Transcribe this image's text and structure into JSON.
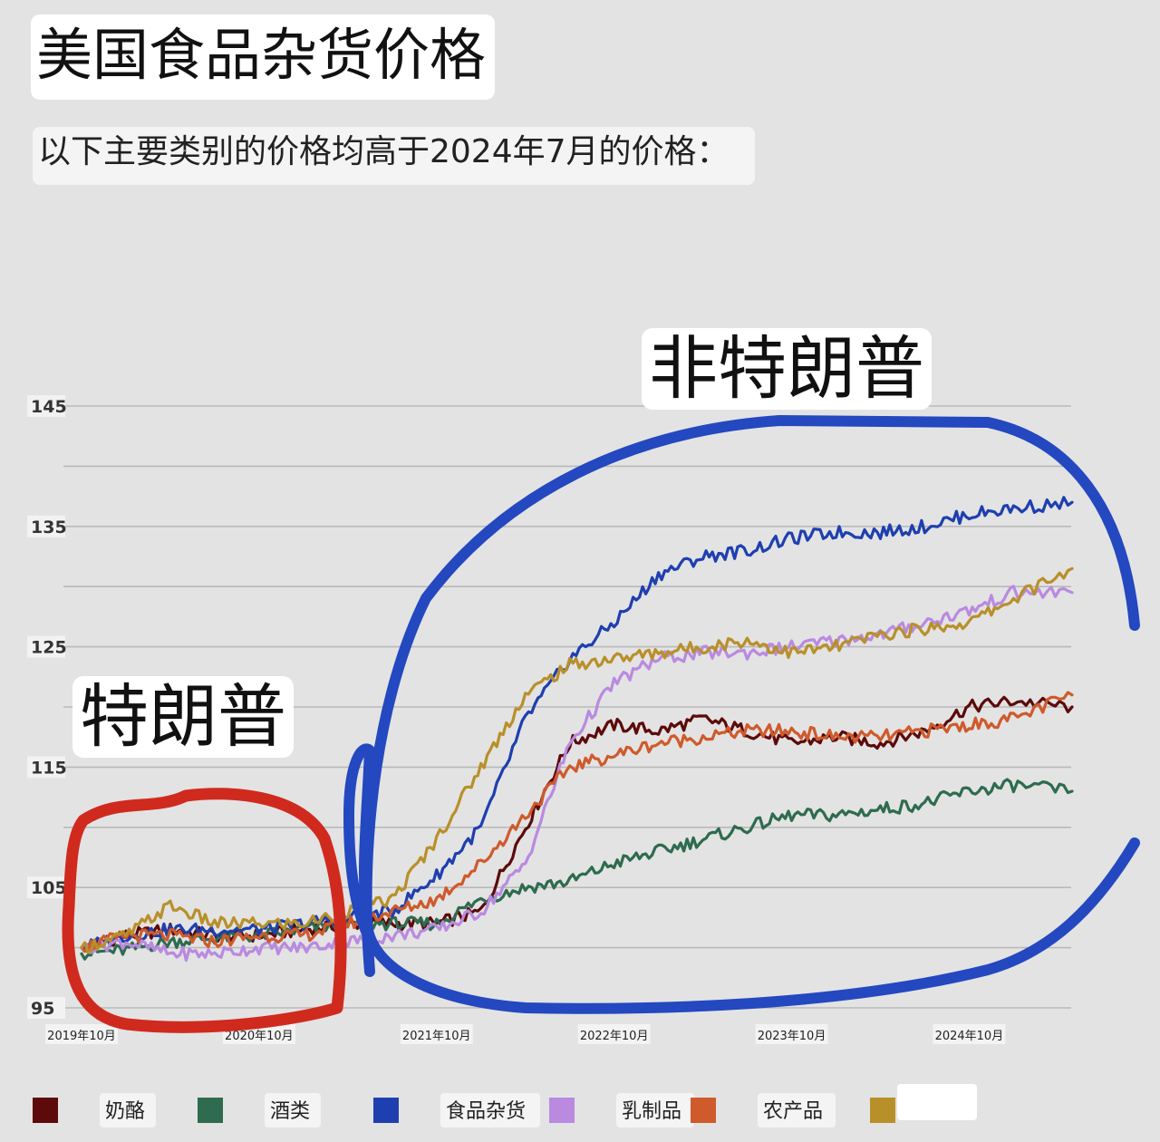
{
  "title": "美国食品杂货价格",
  "subtitle": "以下主要类别的价格均高于2024年7月的价格：",
  "annotations": {
    "trump": "特朗普",
    "non_trump": "非特朗普"
  },
  "colors": {
    "cheese": "#5c0a0a",
    "alcohol": "#2e6b4f",
    "groceries": "#1e3fb0",
    "dairy": "#b98ae0",
    "produce": "#cf5a2b",
    "meat": "#b8902a",
    "trump_circle": "#d02a1e",
    "nontrump_circle": "#2348c0"
  },
  "chart_data": {
    "type": "line",
    "ylim": [
      95,
      145
    ],
    "yticks": [
      "145",
      "135",
      "125",
      "115",
      "105",
      "95"
    ],
    "xticks": [
      "2019年10月",
      "2020年10月",
      "2021年10月",
      "2022年10月",
      "2023年10月",
      "2024年10月"
    ],
    "grid": true,
    "legend_position": "bottom",
    "x": [
      2019.75,
      2020.0,
      2020.25,
      2020.5,
      2020.75,
      2021.0,
      2021.25,
      2021.5,
      2021.75,
      2022.0,
      2022.25,
      2022.5,
      2022.75,
      2023.0,
      2023.25,
      2023.5,
      2023.75,
      2024.0,
      2024.25,
      2024.5,
      2024.75,
      2025.0,
      2025.33
    ],
    "series": [
      {
        "name": "奶酪",
        "color_key": "cheese",
        "values": [
          100,
          101,
          101.5,
          101,
          101,
          101.5,
          102,
          102,
          102,
          103,
          110,
          117,
          118.5,
          118,
          119,
          118,
          117,
          117.5,
          117,
          118,
          120,
          120.5,
          120
        ]
      },
      {
        "name": "酒类",
        "color_key": "alcohol",
        "values": [
          99.5,
          99.8,
          100.5,
          100.8,
          101,
          101.5,
          102,
          102,
          102,
          104,
          105,
          105.5,
          107,
          108,
          109,
          110,
          111,
          111,
          111.5,
          112,
          113,
          113.5,
          113
        ]
      },
      {
        "name": "食品杂货",
        "color_key": "groceries",
        "values": [
          100,
          101,
          101.5,
          101.5,
          101.5,
          102,
          102.5,
          103,
          106,
          110,
          119,
          124,
          127,
          131,
          132.5,
          133,
          134,
          134.5,
          134.5,
          135,
          136,
          136.5,
          137
        ]
      },
      {
        "name": "乳制品",
        "color_key": "dairy",
        "values": [
          100,
          100.5,
          99.5,
          99.5,
          100,
          100,
          100.5,
          101,
          101.5,
          103,
          107,
          117,
          122,
          124,
          124.5,
          124.5,
          125,
          125.5,
          126,
          127,
          128,
          129.5,
          129.5
        ]
      },
      {
        "name": "农产品",
        "color_key": "produce",
        "values": [
          100,
          101,
          101,
          100.5,
          101,
          101,
          102,
          103,
          104,
          107,
          111,
          115,
          116,
          117,
          117.5,
          118,
          118,
          117.5,
          117.5,
          118,
          118.5,
          119,
          121
        ]
      },
      {
        "name": "",
        "color_key": "meat",
        "values": [
          100,
          101,
          103.5,
          102,
          102,
          102,
          103,
          104,
          109,
          115,
          121,
          123.5,
          124,
          124.5,
          125,
          125.5,
          124.5,
          125,
          126,
          126.5,
          127,
          129,
          131.5
        ]
      }
    ],
    "legend": [
      {
        "name": "奶酪",
        "color_key": "cheese"
      },
      {
        "name": "酒类",
        "color_key": "alcohol"
      },
      {
        "name": "食品杂货",
        "color_key": "groceries"
      },
      {
        "name": "乳制品",
        "color_key": "dairy"
      },
      {
        "name": "农产品",
        "color_key": "produce"
      },
      {
        "name": "",
        "color_key": "meat"
      }
    ]
  }
}
